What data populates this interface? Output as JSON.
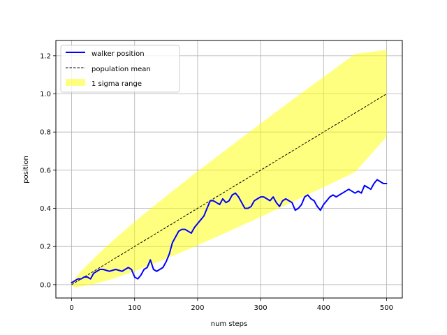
{
  "chart_data": {
    "type": "line",
    "title": "",
    "xlabel": "num steps",
    "ylabel": "position",
    "xlim": [
      -25,
      525
    ],
    "ylim": [
      -0.07,
      1.28
    ],
    "xticks": [
      0,
      100,
      200,
      300,
      400,
      500
    ],
    "yticks": [
      0.0,
      0.2,
      0.4,
      0.6,
      0.8,
      1.0,
      1.2
    ],
    "xtick_labels": [
      "0",
      "100",
      "200",
      "300",
      "400",
      "500"
    ],
    "ytick_labels": [
      "0.0",
      "0.2",
      "0.4",
      "0.6",
      "0.8",
      "1.0",
      "1.2"
    ],
    "grid": true,
    "legend_position": "upper-left",
    "series": [
      {
        "name": "walker position",
        "kind": "line",
        "color": "#0000ff",
        "x": [
          0,
          5,
          10,
          15,
          20,
          25,
          30,
          35,
          40,
          45,
          50,
          60,
          70,
          80,
          90,
          95,
          100,
          105,
          110,
          115,
          120,
          125,
          130,
          135,
          140,
          145,
          150,
          155,
          160,
          165,
          170,
          175,
          180,
          185,
          190,
          195,
          200,
          205,
          210,
          215,
          220,
          225,
          230,
          235,
          240,
          245,
          250,
          255,
          260,
          265,
          270,
          275,
          280,
          285,
          290,
          295,
          300,
          305,
          310,
          315,
          320,
          325,
          330,
          335,
          340,
          345,
          350,
          355,
          360,
          365,
          370,
          375,
          380,
          385,
          390,
          395,
          400,
          405,
          410,
          415,
          420,
          425,
          430,
          435,
          440,
          445,
          450,
          455,
          460,
          465,
          470,
          475,
          480,
          485,
          490,
          495,
          500
        ],
        "y": [
          0.01,
          0.02,
          0.03,
          0.03,
          0.04,
          0.04,
          0.03,
          0.06,
          0.07,
          0.08,
          0.08,
          0.07,
          0.08,
          0.07,
          0.09,
          0.08,
          0.04,
          0.03,
          0.05,
          0.08,
          0.09,
          0.13,
          0.08,
          0.07,
          0.08,
          0.09,
          0.12,
          0.16,
          0.22,
          0.25,
          0.28,
          0.29,
          0.29,
          0.28,
          0.27,
          0.3,
          0.32,
          0.34,
          0.36,
          0.4,
          0.44,
          0.44,
          0.43,
          0.42,
          0.45,
          0.43,
          0.44,
          0.47,
          0.48,
          0.46,
          0.43,
          0.4,
          0.4,
          0.41,
          0.44,
          0.45,
          0.46,
          0.46,
          0.45,
          0.44,
          0.46,
          0.43,
          0.41,
          0.44,
          0.45,
          0.44,
          0.43,
          0.39,
          0.4,
          0.42,
          0.46,
          0.47,
          0.45,
          0.44,
          0.41,
          0.39,
          0.42,
          0.44,
          0.46,
          0.47,
          0.46,
          0.47,
          0.48,
          0.49,
          0.5,
          0.49,
          0.48,
          0.49,
          0.48,
          0.52,
          0.51,
          0.5,
          0.53,
          0.55,
          0.54,
          0.53,
          0.53
        ]
      },
      {
        "name": "population mean",
        "kind": "dashed-line",
        "color": "#000000",
        "x": [
          0,
          500
        ],
        "y": [
          0.0,
          1.0
        ]
      },
      {
        "name": "1 sigma range",
        "kind": "band",
        "color": "#ffff00",
        "x": [
          0,
          1,
          2,
          5,
          10,
          20,
          40,
          60,
          80,
          100,
          150,
          200,
          250,
          300,
          350,
          400,
          450,
          500
        ],
        "upper": [
          0.0,
          0.012,
          0.018,
          0.032,
          0.052,
          0.088,
          0.153,
          0.215,
          0.273,
          0.33,
          0.464,
          0.594,
          0.72,
          0.845,
          0.968,
          1.089,
          1.21,
          1.23
        ],
        "lower": [
          0.0,
          -0.008,
          -0.01,
          -0.012,
          -0.012,
          -0.008,
          0.007,
          0.025,
          0.047,
          0.07,
          0.136,
          0.206,
          0.28,
          0.355,
          0.432,
          0.511,
          0.59,
          0.775
        ]
      }
    ]
  }
}
